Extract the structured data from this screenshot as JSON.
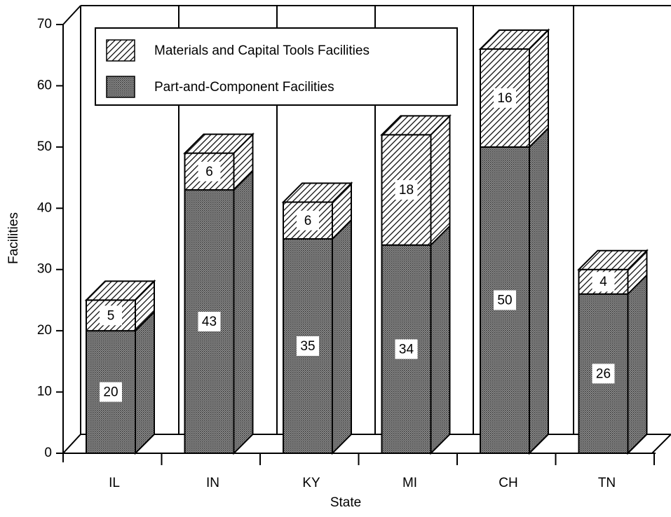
{
  "chart_data": {
    "type": "bar",
    "stacked": true,
    "x_label": "State",
    "y_label": "Facilities",
    "categories": [
      "IL",
      "IN",
      "KY",
      "MI",
      "CH",
      "TN"
    ],
    "series": [
      {
        "name": "Part-and-Component Facilities",
        "color": "#888888",
        "values": [
          20,
          43,
          35,
          34,
          50,
          26
        ]
      },
      {
        "name": "Materials and Capital Tools Facilities",
        "color": "#ffffff",
        "values": [
          5,
          6,
          6,
          18,
          16,
          4
        ]
      }
    ],
    "ylim": [
      0,
      70
    ],
    "yticks": [
      0,
      10,
      20,
      30,
      40,
      50,
      60,
      70
    ]
  }
}
